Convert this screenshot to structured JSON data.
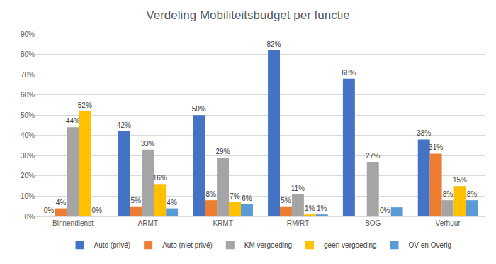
{
  "chart_data": {
    "type": "bar",
    "title": "Verdeling Mobiliteitsbudget per functie",
    "categories": [
      "Binnendienst",
      "ARMT",
      "KRMT",
      "RM/RT",
      "BOG",
      "Verhuur"
    ],
    "series": [
      {
        "name": "Auto (privé)",
        "color": "#4472c4",
        "values": [
          0,
          42,
          50,
          82,
          68,
          38
        ],
        "value_labels": [
          "0%",
          "42%",
          "50%",
          "82%",
          "68%",
          "38%"
        ]
      },
      {
        "name": "Auto (niet privé)",
        "color": "#ed7d31",
        "values": [
          4,
          5,
          8,
          5,
          null,
          31
        ],
        "value_labels": [
          "4%",
          "5%",
          "8%",
          "5%",
          null,
          "31%"
        ]
      },
      {
        "name": "KM vergoeding",
        "color": "#a5a5a5",
        "values": [
          44,
          33,
          29,
          11,
          27,
          8
        ],
        "value_labels": [
          "44%",
          "33%",
          "29%",
          "11%",
          "27%",
          "8%"
        ]
      },
      {
        "name": "geen vergoeding",
        "color": "#ffc000",
        "values": [
          52,
          16,
          7,
          1,
          0,
          15
        ],
        "value_labels": [
          "52%",
          "16%",
          "7%",
          "1%",
          "0%",
          "15%"
        ]
      },
      {
        "name": "OV en Overig",
        "color": "#5b9bd5",
        "values": [
          0,
          4,
          6,
          1,
          4.5,
          8
        ],
        "value_labels": [
          "0%",
          "4%",
          "6%",
          "1%",
          null,
          "8%"
        ]
      }
    ],
    "ylim": [
      0,
      90
    ],
    "yticks": [
      {
        "value": 0,
        "label": "0%"
      },
      {
        "value": 10,
        "label": "10%"
      },
      {
        "value": 20,
        "label": "20%"
      },
      {
        "value": 30,
        "label": "30%"
      },
      {
        "value": 40,
        "label": "40%"
      },
      {
        "value": 50,
        "label": "50%"
      },
      {
        "value": 60,
        "label": "60%"
      },
      {
        "value": 70,
        "label": "70%"
      },
      {
        "value": 80,
        "label": "80%"
      },
      {
        "value": 90,
        "label": "90%"
      }
    ],
    "grid": true,
    "legend": "bottom",
    "data_labels": true
  }
}
